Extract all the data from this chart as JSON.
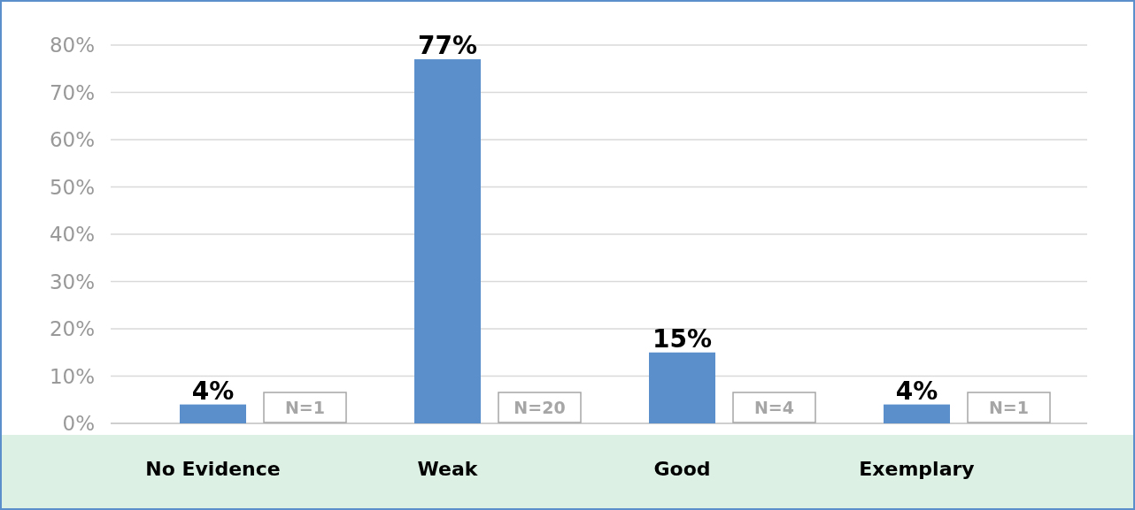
{
  "chart_data": {
    "type": "bar",
    "categories": [
      "No Evidence",
      "Weak",
      "Good",
      "Exemplary"
    ],
    "values": [
      4,
      77,
      15,
      4
    ],
    "color": "#5b8fcc",
    "value_labels": [
      "4%",
      "77%",
      "15%",
      "4%"
    ],
    "ylim": [
      0,
      80
    ],
    "yticks": [
      {
        "value": 0,
        "label": "0%"
      },
      {
        "value": 10,
        "label": "10%"
      },
      {
        "value": 20,
        "label": "20%"
      },
      {
        "value": 30,
        "label": "30%"
      },
      {
        "value": 40,
        "label": "40%"
      },
      {
        "value": 50,
        "label": "50%"
      },
      {
        "value": 60,
        "label": "60%"
      },
      {
        "value": 70,
        "label": "70%"
      },
      {
        "value": 80,
        "label": "80%"
      }
    ],
    "grid": "y",
    "annotations": [
      "N=1",
      "N=20",
      "N=4",
      "N=1"
    ]
  }
}
